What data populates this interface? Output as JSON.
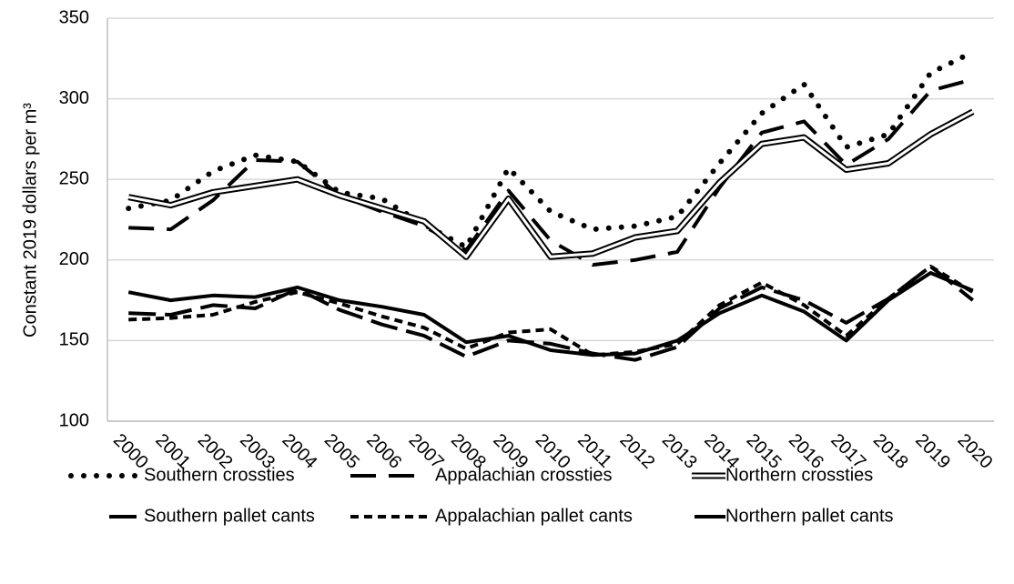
{
  "chart_data": {
    "type": "line",
    "y_label": "Constant 2019 dollars per m³",
    "categories": [
      "2000",
      "2001",
      "2002",
      "2003",
      "2004",
      "2005",
      "2006",
      "2007",
      "2008",
      "2009",
      "2010",
      "2011",
      "2012",
      "2013",
      "2014",
      "2015",
      "2016",
      "2017",
      "2018",
      "2019",
      "2020"
    ],
    "ylim": [
      100,
      350
    ],
    "yticks": [
      100,
      150,
      200,
      250,
      300,
      350
    ],
    "grid": true,
    "series": [
      {
        "name": "Southern crossties",
        "color": "#000000",
        "style": "dotted",
        "values": [
          232,
          237,
          255,
          265,
          261,
          242,
          238,
          222,
          208,
          257,
          230,
          219,
          221,
          227,
          260,
          291,
          309,
          270,
          278,
          316,
          329
        ]
      },
      {
        "name": "Appalachian crossties",
        "color": "#000000",
        "style": "dashed",
        "values": [
          220,
          219,
          237,
          262,
          261,
          240,
          230,
          221,
          206,
          243,
          212,
          197,
          200,
          205,
          245,
          279,
          286,
          259,
          275,
          305,
          312
        ]
      },
      {
        "name": "Northern crossties",
        "color": "#000000",
        "style": "double",
        "values": [
          239,
          234,
          242,
          246,
          250,
          240,
          232,
          224,
          202,
          238,
          202,
          204,
          214,
          218,
          248,
          272,
          276,
          256,
          260,
          278,
          292
        ]
      },
      {
        "name": "Southern pallet cants",
        "color": "#000000",
        "style": "long-dash",
        "values": [
          167,
          166,
          172,
          170,
          182,
          169,
          160,
          153,
          140,
          150,
          148,
          142,
          138,
          146,
          170,
          183,
          175,
          161,
          176,
          196,
          175
        ]
      },
      {
        "name": "Appalachian pallet cants",
        "color": "#000000",
        "style": "short-dash",
        "values": [
          163,
          164,
          166,
          174,
          180,
          173,
          165,
          158,
          145,
          155,
          157,
          141,
          143,
          148,
          172,
          186,
          172,
          153,
          176,
          196,
          180
        ]
      },
      {
        "name": "Northern pallet cants",
        "color": "#000000",
        "style": "solid",
        "values": [
          180,
          175,
          178,
          177,
          183,
          175,
          171,
          166,
          149,
          153,
          144,
          141,
          142,
          150,
          167,
          178,
          168,
          150,
          175,
          192,
          181
        ]
      }
    ]
  }
}
